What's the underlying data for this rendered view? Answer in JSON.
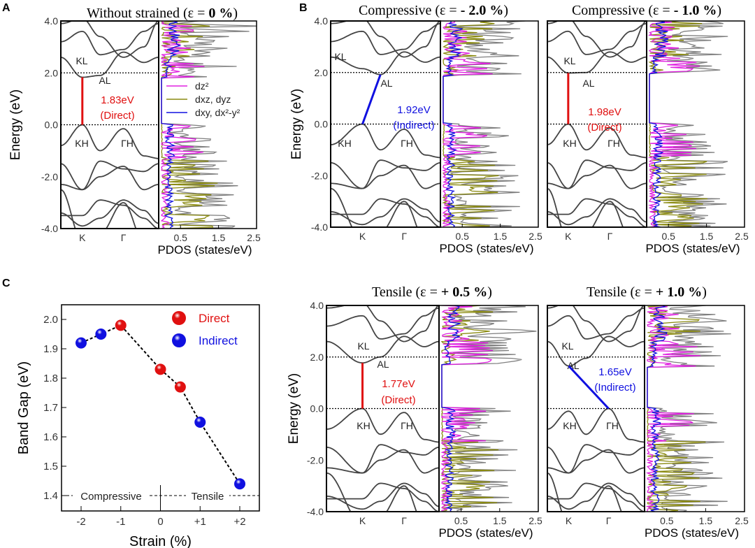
{
  "chart_data": [
    {
      "id": "A",
      "type": "line",
      "panel_letter": "A",
      "title_prefix": "Without strained (ε = ",
      "title_value": " 0 %",
      "title_suffix": ")",
      "ylabel": "Energy (eV)",
      "xlabel": "PDOS (states/eV)",
      "yticks": [
        "4.0",
        "2.0",
        "0.0",
        "-2.0",
        "-4.0"
      ],
      "ylim": [
        -4,
        4
      ],
      "kpoints": [
        "K",
        "Γ"
      ],
      "pdos_ticks": [
        "0.5",
        "1.5",
        "2.5"
      ],
      "pdos_xlim": [
        0,
        2.5
      ],
      "labels": {
        "cb_k": "KL",
        "cb_a": "AL",
        "vb_k": "KH",
        "vb_g": "ΓH"
      },
      "gap": {
        "value": 1.83,
        "label": "1.83eV",
        "type_label": "(Direct)",
        "type": "direct"
      },
      "legend": [
        {
          "label": "dz²",
          "color": "#e020e0"
        },
        {
          "label": "dxz, dyz",
          "color": "#8a8a10"
        },
        {
          "label": "dxy, dx²-y²",
          "color": "#1010e0"
        }
      ]
    },
    {
      "id": "B1",
      "type": "line",
      "panel_letter": "B",
      "title_prefix": "Compressive (ε = ",
      "title_value": "- 2.0 %",
      "title_suffix": ")",
      "ylabel": "Energy (eV)",
      "xlabel": "PDOS (states/eV)",
      "yticks": [
        "4.0",
        "2.0",
        "0.0",
        "-2.0",
        "-4.0"
      ],
      "kpoints": [
        "K",
        "Γ"
      ],
      "pdos_ticks": [
        "0.5",
        "1.5",
        "2.5"
      ],
      "labels": {
        "cb_k": "KL",
        "cb_a": "AL",
        "vb_k": "KH",
        "vb_g": "ΓH"
      },
      "gap": {
        "value": 1.92,
        "label": "1.92eV",
        "type_label": "(Indirect)",
        "type": "indirect"
      }
    },
    {
      "id": "B2",
      "type": "line",
      "title_prefix": "Compressive (ε = ",
      "title_value": "- 1.0 %",
      "title_suffix": ")",
      "xlabel": "PDOS (states/eV)",
      "kpoints": [
        "K",
        "Γ"
      ],
      "pdos_ticks": [
        "0.5",
        "1.5",
        "2.5"
      ],
      "labels": {
        "cb_k": "KL",
        "cb_a": "AL",
        "vb_k": "KH",
        "vb_g": "ΓH"
      },
      "gap": {
        "value": 1.98,
        "label": "1.98eV",
        "type_label": "(Direct)",
        "type": "direct"
      }
    },
    {
      "id": "T1",
      "type": "line",
      "title_prefix": "Tensile (ε = ",
      "title_value": "+ 0.5 %",
      "title_suffix": ")",
      "ylabel": "Energy (eV)",
      "xlabel": "PDOS (states/eV)",
      "yticks": [
        "4.0",
        "2.0",
        "0.0",
        "-2.0",
        "-4.0"
      ],
      "kpoints": [
        "K",
        "Γ"
      ],
      "pdos_ticks": [
        "0.5",
        "1.5",
        "2.5"
      ],
      "labels": {
        "cb_k": "KL",
        "cb_a": "AL",
        "vb_k": "KH",
        "vb_g": "ΓH"
      },
      "gap": {
        "value": 1.77,
        "label": "1.77eV",
        "type_label": "(Direct)",
        "type": "direct"
      }
    },
    {
      "id": "T2",
      "type": "line",
      "title_prefix": "Tensile (ε = ",
      "title_value": "+ 1.0 %",
      "title_suffix": ")",
      "xlabel": "PDOS (states/eV)",
      "kpoints": [
        "K",
        "Γ"
      ],
      "pdos_ticks": [
        "0.5",
        "1.5",
        "2.5"
      ],
      "labels": {
        "cb_k": "KL",
        "cb_a": "AL",
        "vb_k": "KH",
        "vb_g": "ΓH"
      },
      "gap": {
        "value": 1.65,
        "label": "1.65eV",
        "type_label": "(Indirect)",
        "type": "indirect"
      }
    },
    {
      "id": "C",
      "type": "scatter",
      "panel_letter": "C",
      "xlabel": "Strain (%)",
      "ylabel": "Band Gap (eV)",
      "xlim": [
        -2.5,
        2.5
      ],
      "ylim": [
        1.35,
        2.05
      ],
      "xticks": [
        {
          "v": -2,
          "label": "-2"
        },
        {
          "v": -1,
          "label": "-1"
        },
        {
          "v": 0,
          "label": "0"
        },
        {
          "v": 1,
          "label": "+1"
        },
        {
          "v": 2,
          "label": "+2"
        }
      ],
      "yticks": [
        {
          "v": 1.4,
          "label": "1.4"
        },
        {
          "v": 1.5,
          "label": "1.5"
        },
        {
          "v": 1.6,
          "label": "1.6"
        },
        {
          "v": 1.7,
          "label": "1.7"
        },
        {
          "v": 1.8,
          "label": "1.8"
        },
        {
          "v": 1.9,
          "label": "1.9"
        },
        {
          "v": 2.0,
          "label": "2.0"
        }
      ],
      "points": [
        {
          "x": -2,
          "y": 1.92,
          "kind": "Indirect"
        },
        {
          "x": -1.5,
          "y": 1.95,
          "kind": "Indirect"
        },
        {
          "x": -1,
          "y": 1.98,
          "kind": "Direct"
        },
        {
          "x": 0,
          "y": 1.83,
          "kind": "Direct"
        },
        {
          "x": 0.5,
          "y": 1.77,
          "kind": "Direct"
        },
        {
          "x": 1,
          "y": 1.65,
          "kind": "Indirect"
        },
        {
          "x": 2,
          "y": 1.44,
          "kind": "Indirect"
        }
      ],
      "legend": [
        {
          "label": "Direct",
          "color": "#e01010"
        },
        {
          "label": "Indirect",
          "color": "#1010e0"
        }
      ],
      "regions": {
        "left": "Compressive",
        "right": "Tensile"
      }
    }
  ],
  "colors": {
    "direct": "#e01010",
    "indirect": "#1010e0",
    "total": "#808080",
    "dz2": "#e020e0",
    "dxz": "#8a8a10",
    "dxy": "#1010e0"
  }
}
